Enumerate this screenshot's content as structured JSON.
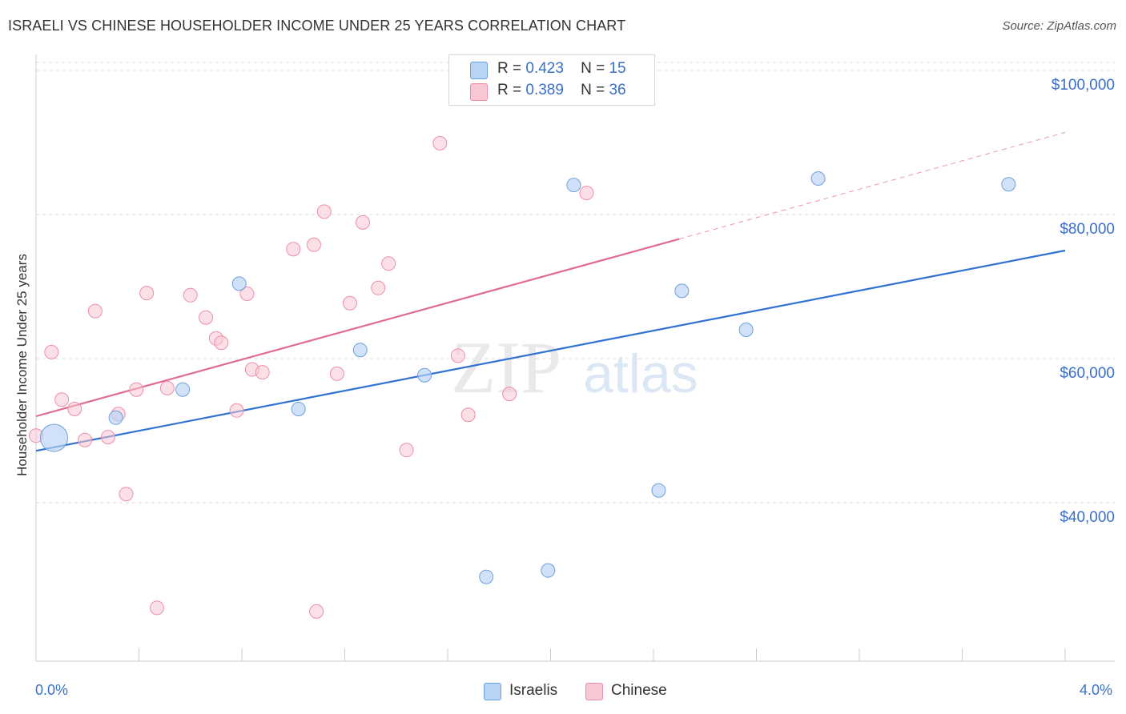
{
  "title": "ISRAELI VS CHINESE HOUSEHOLDER INCOME UNDER 25 YEARS CORRELATION CHART",
  "source": "Source: ZipAtlas.com",
  "legend": {
    "r_label": "R =",
    "n_label": "N =",
    "israelis": {
      "r": "0.423",
      "n": "15"
    },
    "chinese": {
      "r": "0.389",
      "n": "36"
    }
  },
  "colors": {
    "israelis_fill": "#b9d3f5",
    "israelis_stroke": "#6f9fdc",
    "israelis_line": "#2f72d0",
    "chinese_fill": "#f9c6d4",
    "chinese_stroke": "#eb8fa8",
    "chinese_line": "#e06b90",
    "axis_label_color": "#3a6fc8",
    "grid": "#dddddd"
  },
  "watermark": {
    "zip": "ZIP",
    "atlas": "atlas"
  },
  "chart_data": {
    "type": "scatter",
    "xlabel": "",
    "ylabel": "Householder Income Under 25 years",
    "xlim": [
      0,
      4
    ],
    "ylim": [
      18000,
      102000
    ],
    "x_tick_labels": [
      "0.0%",
      "4.0%"
    ],
    "y_ticks": [
      40000,
      60000,
      80000,
      100000
    ],
    "y_tick_labels": [
      "$40,000",
      "$60,000",
      "$80,000",
      "$100,000"
    ],
    "grid": true,
    "legend_position": "top-center",
    "series": [
      {
        "name": "Israelis",
        "points": [
          {
            "x": 0.07,
            "y": 49000,
            "big": true
          },
          {
            "x": 0.31,
            "y": 51800
          },
          {
            "x": 0.57,
            "y": 55700
          },
          {
            "x": 0.79,
            "y": 70400
          },
          {
            "x": 1.02,
            "y": 53000
          },
          {
            "x": 1.26,
            "y": 61200
          },
          {
            "x": 1.51,
            "y": 57700
          },
          {
            "x": 1.75,
            "y": 29700
          },
          {
            "x": 1.99,
            "y": 30600
          },
          {
            "x": 2.09,
            "y": 84100
          },
          {
            "x": 2.42,
            "y": 41700
          },
          {
            "x": 2.51,
            "y": 69400
          },
          {
            "x": 2.76,
            "y": 64000
          },
          {
            "x": 3.04,
            "y": 85000
          },
          {
            "x": 3.78,
            "y": 84200
          }
        ],
        "trend": {
          "x0": 0,
          "y0": 47200,
          "x1": 4.0,
          "y1": 75000
        }
      },
      {
        "name": "Chinese",
        "points": [
          {
            "x": 0.0,
            "y": 49300
          },
          {
            "x": 0.06,
            "y": 60900
          },
          {
            "x": 0.1,
            "y": 54300
          },
          {
            "x": 0.15,
            "y": 53000
          },
          {
            "x": 0.19,
            "y": 48700
          },
          {
            "x": 0.23,
            "y": 66600
          },
          {
            "x": 0.28,
            "y": 49100
          },
          {
            "x": 0.32,
            "y": 52300
          },
          {
            "x": 0.35,
            "y": 41200
          },
          {
            "x": 0.39,
            "y": 55700
          },
          {
            "x": 0.43,
            "y": 69100
          },
          {
            "x": 0.47,
            "y": 25400
          },
          {
            "x": 0.51,
            "y": 55900
          },
          {
            "x": 0.6,
            "y": 68800
          },
          {
            "x": 0.66,
            "y": 65700
          },
          {
            "x": 0.7,
            "y": 62800
          },
          {
            "x": 0.72,
            "y": 62200
          },
          {
            "x": 0.78,
            "y": 52800
          },
          {
            "x": 0.82,
            "y": 69000
          },
          {
            "x": 0.84,
            "y": 58500
          },
          {
            "x": 0.88,
            "y": 58100
          },
          {
            "x": 1.0,
            "y": 75200
          },
          {
            "x": 1.08,
            "y": 75800
          },
          {
            "x": 1.09,
            "y": 24900
          },
          {
            "x": 1.12,
            "y": 80400
          },
          {
            "x": 1.17,
            "y": 57900
          },
          {
            "x": 1.22,
            "y": 67700
          },
          {
            "x": 1.27,
            "y": 78900
          },
          {
            "x": 1.33,
            "y": 69800
          },
          {
            "x": 1.37,
            "y": 73200
          },
          {
            "x": 1.44,
            "y": 47300
          },
          {
            "x": 1.57,
            "y": 89900
          },
          {
            "x": 1.64,
            "y": 60400
          },
          {
            "x": 1.68,
            "y": 52200
          },
          {
            "x": 1.84,
            "y": 55100
          },
          {
            "x": 2.14,
            "y": 83000
          }
        ],
        "trend": {
          "x0": 0,
          "y0": 52000,
          "x1": 2.5,
          "y1": 76600
        },
        "trend_dashed_to": {
          "x": 4.0,
          "y": 91400
        }
      }
    ]
  },
  "bottom_legend": {
    "israelis": "Israelis",
    "chinese": "Chinese"
  }
}
